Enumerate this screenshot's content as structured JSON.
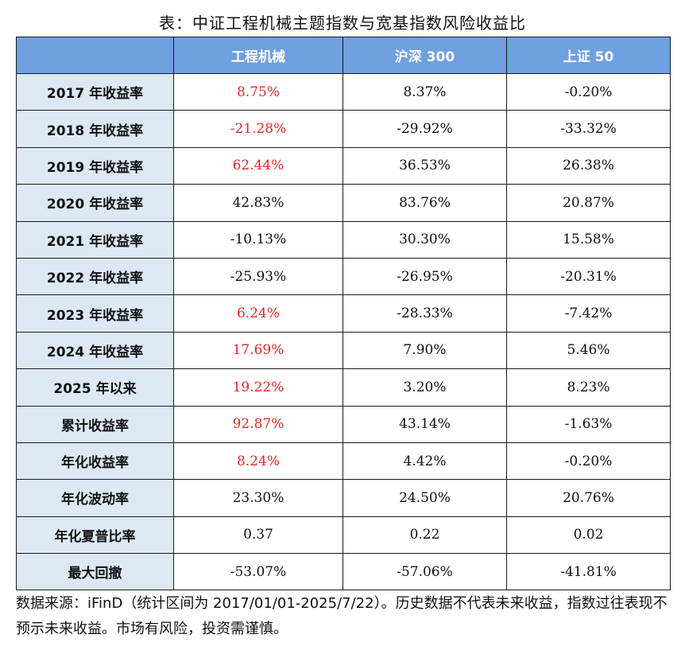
{
  "title": "表：中证工程机械主题指数与宽基指数风险收益比",
  "chart_data": {
    "type": "table",
    "columns": [
      "",
      "工程机械",
      "沪深 300",
      "上证 50"
    ],
    "rows": [
      {
        "label": "2017 年收益率",
        "values": [
          "8.75%",
          "8.37%",
          "-0.20%"
        ],
        "highlight": [
          true,
          false,
          false
        ]
      },
      {
        "label": "2018 年收益率",
        "values": [
          "-21.28%",
          "-29.92%",
          "-33.32%"
        ],
        "highlight": [
          true,
          false,
          false
        ]
      },
      {
        "label": "2019 年收益率",
        "values": [
          "62.44%",
          "36.53%",
          "26.38%"
        ],
        "highlight": [
          true,
          false,
          false
        ]
      },
      {
        "label": "2020 年收益率",
        "values": [
          "42.83%",
          "83.76%",
          "20.87%"
        ],
        "highlight": [
          false,
          false,
          false
        ]
      },
      {
        "label": "2021 年收益率",
        "values": [
          "-10.13%",
          "30.30%",
          "15.58%"
        ],
        "highlight": [
          false,
          false,
          false
        ]
      },
      {
        "label": "2022 年收益率",
        "values": [
          "-25.93%",
          "-26.95%",
          "-20.31%"
        ],
        "highlight": [
          false,
          false,
          false
        ]
      },
      {
        "label": "2023 年收益率",
        "values": [
          "6.24%",
          "-28.33%",
          "-7.42%"
        ],
        "highlight": [
          true,
          false,
          false
        ]
      },
      {
        "label": "2024 年收益率",
        "values": [
          "17.69%",
          "7.90%",
          "5.46%"
        ],
        "highlight": [
          true,
          false,
          false
        ]
      },
      {
        "label": "2025 年以来",
        "values": [
          "19.22%",
          "3.20%",
          "8.23%"
        ],
        "highlight": [
          true,
          false,
          false
        ]
      },
      {
        "label": "累计收益率",
        "values": [
          "92.87%",
          "43.14%",
          "-1.63%"
        ],
        "highlight": [
          true,
          false,
          false
        ]
      },
      {
        "label": "年化收益率",
        "values": [
          "8.24%",
          "4.42%",
          "-0.20%"
        ],
        "highlight": [
          true,
          false,
          false
        ]
      },
      {
        "label": "年化波动率",
        "values": [
          "23.30%",
          "24.50%",
          "20.76%"
        ],
        "highlight": [
          false,
          false,
          false
        ]
      },
      {
        "label": "年化夏普比率",
        "values": [
          "0.37",
          "0.22",
          "0.02"
        ],
        "highlight": [
          false,
          false,
          false
        ]
      },
      {
        "label": "最大回撤",
        "values": [
          "-53.07%",
          "-57.06%",
          "-41.81%"
        ],
        "highlight": [
          false,
          false,
          false
        ]
      }
    ]
  },
  "note": "数据来源：iFinD（统计区间为 2017/01/01-2025/7/22）。历史数据不代表未来收益，指数过往表现不预示未来收益。市场有风险，投资需谨慎。",
  "colors": {
    "header_bg": "#6fa0df",
    "rowhead_bg": "#dde8f5",
    "highlight": "#e02828"
  }
}
